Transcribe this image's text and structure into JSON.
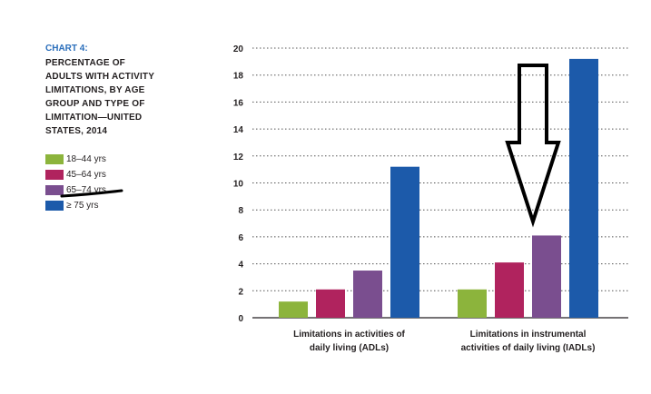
{
  "header": {
    "chart_label": "CHART 4:",
    "title_lines": [
      "PERCENTAGE OF",
      "ADULTS WITH ACTIVITY",
      "LIMITATIONS, BY AGE",
      "GROUP AND TYPE OF",
      "LIMITATION—UNITED",
      "STATES, 2014"
    ]
  },
  "chart_data": {
    "type": "bar",
    "categories": [
      [
        "Limitations in activities of",
        "daily living (ADLs)"
      ],
      [
        "Limitations in instrumental",
        "activities of daily living (IADLs)"
      ]
    ],
    "series": [
      {
        "name": "18–44 yrs",
        "values": [
          1.2,
          2.1
        ],
        "color": "#8cb43c"
      },
      {
        "name": "45–64 yrs",
        "values": [
          2.1,
          4.1
        ],
        "color": "#b0235e"
      },
      {
        "name": "65–74 yrs",
        "values": [
          3.5,
          6.1
        ],
        "color": "#7a4e8f"
      },
      {
        "name": "≥ 75 yrs",
        "values": [
          11.2,
          19.2
        ],
        "color": "#1c5aaa"
      }
    ],
    "yticks": [
      0,
      2,
      4,
      6,
      8,
      10,
      12,
      14,
      16,
      18,
      20
    ],
    "ylim": [
      0,
      20
    ],
    "grid": "dotted horizontal",
    "legend": "left"
  },
  "annotations": {
    "arrow": "down arrow pointing to 65–74 yrs IADL bar",
    "underline": "hand-drawn line under 65–74 yrs legend entry"
  }
}
